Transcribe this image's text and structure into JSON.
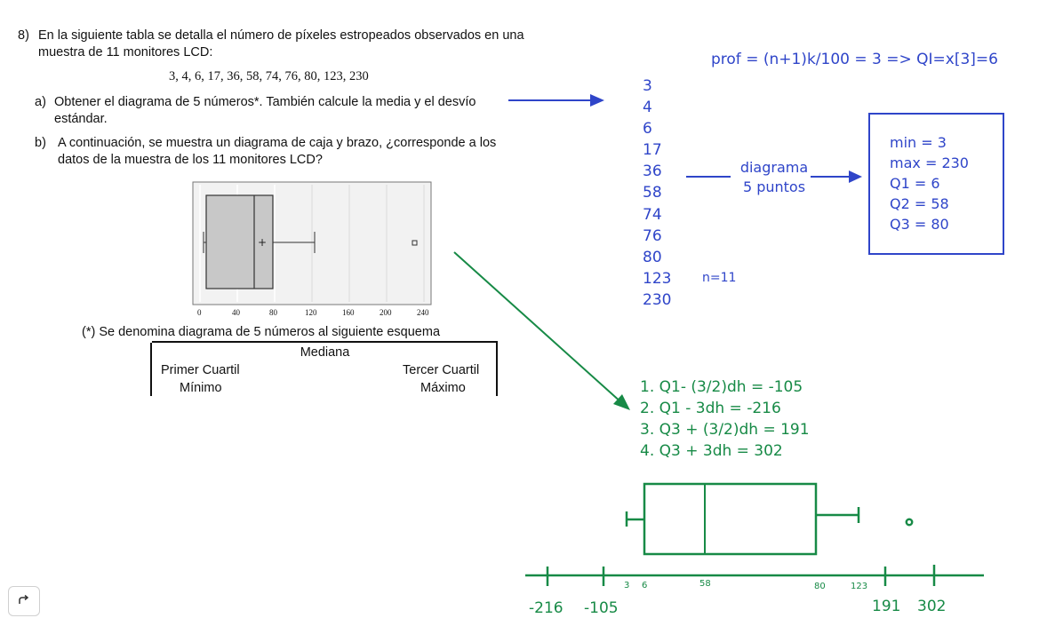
{
  "problem": {
    "number": "8)",
    "intro_line1": "En la siguiente tabla se detalla el número de píxeles estropeados observados en una",
    "intro_line2": "muestra de 11 monitores LCD:",
    "data_line": "3, 4, 6, 17, 36, 58, 74, 76, 80, 123, 230",
    "part_a_marker": "a)",
    "part_a_line1": "Obtener el diagrama de 5 números*. También calcule la media y el desvío",
    "part_a_line2": "estándar.",
    "part_b_marker": "b)",
    "part_b_line1": "A continuación, se muestra un diagrama de caja y brazo, ¿corresponde a los",
    "part_b_line2": "datos de la muestra de los 11 monitores LCD?",
    "footnote": "(*) Se denomina diagrama de 5 números al siguiente esquema",
    "scheme": {
      "median": "Mediana",
      "q1": "Primer Cuartil",
      "q3": "Tercer Cuartil",
      "min": "Mínimo",
      "max": "Máximo"
    },
    "boxplot_ticks": [
      "0",
      "40",
      "80",
      "120",
      "160",
      "200",
      "240"
    ]
  },
  "annotations": {
    "position_formula": "prof = (n+1)k/100 = 3 => QI=x[3]=6",
    "sorted_values": [
      "3",
      "4",
      "6",
      "17",
      "36",
      "58",
      "74",
      "76",
      "80",
      "123",
      "230"
    ],
    "n_label": "n=11",
    "diagram_label_line1": "diagrama",
    "diagram_label_line2": "5 puntos",
    "summary": [
      "min = 3",
      "max = 230",
      "Q1 = 6",
      "Q2 = 58",
      "Q3 = 80"
    ],
    "fences": [
      "1. Q1- (3/2)dh = -105",
      "2. Q1 - 3dh = -216",
      "3. Q3 + (3/2)dh = 191",
      "4. Q3 + 3dh = 302"
    ],
    "axis_small_labels": [
      "3",
      "6",
      "58",
      "80",
      "123"
    ],
    "axis_big_labels": [
      "-216",
      "-105",
      "191",
      "302"
    ]
  },
  "colors": {
    "blue_ink": "#2f45c9",
    "green_ink": "#178a46"
  },
  "toolbar": {
    "undo_icon": "redo-arrow-icon"
  }
}
